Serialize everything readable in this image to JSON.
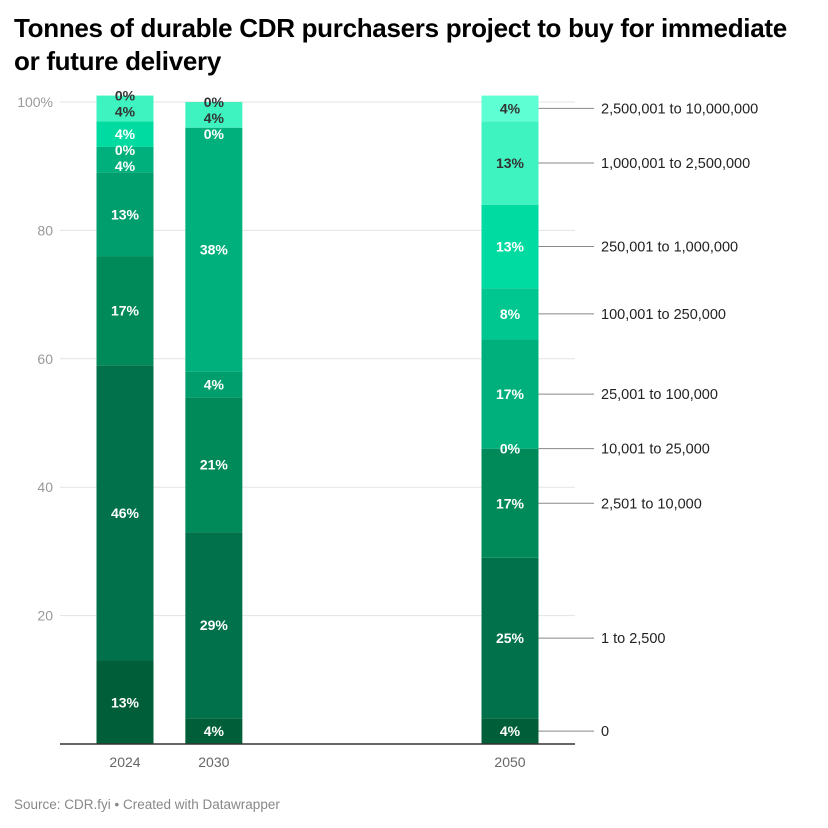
{
  "chart_data": {
    "type": "bar",
    "stacked": true,
    "title": "Tonnes of durable CDR purchasers project to buy for immediate or future delivery",
    "source": "Source: CDR.fyi • Created with Datawrapper",
    "categories": [
      "2024",
      "2030",
      "2050"
    ],
    "ylim": [
      0,
      100
    ],
    "yticks": [
      0,
      20,
      40,
      60,
      80,
      100
    ],
    "ytick_labels": [
      "",
      "20",
      "40",
      "60",
      "80",
      "100%"
    ],
    "grid": true,
    "legend": "direct labels right",
    "series": [
      {
        "name": "0",
        "color": "#005e38",
        "values": [
          13,
          4,
          4
        ]
      },
      {
        "name": "1 to 2,500",
        "color": "#00714a",
        "values": [
          46,
          29,
          25
        ]
      },
      {
        "name": "2,501 to 10,000",
        "color": "#008a5a",
        "values": [
          17,
          21,
          17
        ]
      },
      {
        "name": "10,001 to 25,000",
        "color": "#009e6c",
        "values": [
          13,
          4,
          0
        ]
      },
      {
        "name": "25,001 to 100,000",
        "color": "#00b07c",
        "values": [
          4,
          38,
          17
        ]
      },
      {
        "name": "100,001 to 250,000",
        "color": "#00c78f",
        "values": [
          0,
          0,
          8
        ]
      },
      {
        "name": "250,001 to 1,000,000",
        "color": "#00dba2",
        "values": [
          4,
          0,
          13
        ]
      },
      {
        "name": "1,000,001 to 2,500,000",
        "color": "#3ff3c0",
        "values": [
          4,
          4,
          13
        ]
      },
      {
        "name": "2,500,001 to 10,000,000",
        "color": "#5effd2",
        "values": [
          0,
          0,
          4
        ]
      }
    ]
  }
}
